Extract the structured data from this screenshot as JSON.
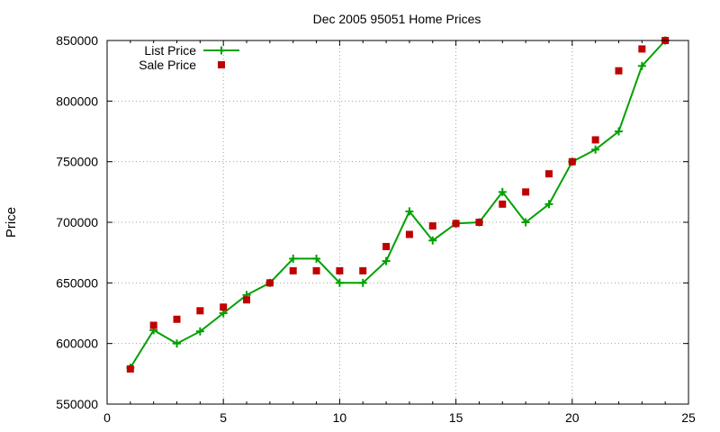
{
  "chart_data": {
    "type": "line",
    "title": "Dec 2005 95051 Home Prices",
    "xlabel": "",
    "ylabel": "Price",
    "xlim": [
      0,
      25
    ],
    "ylim": [
      550000,
      850000
    ],
    "xticks": [
      0,
      5,
      10,
      15,
      20,
      25
    ],
    "yticks": [
      550000,
      600000,
      650000,
      700000,
      750000,
      800000,
      850000
    ],
    "grid": true,
    "legend_position": "top-left",
    "series": [
      {
        "name": "List Price",
        "style": "line-points",
        "marker": "plus",
        "color": "#00a000",
        "x": [
          1,
          2,
          3,
          4,
          5,
          6,
          7,
          8,
          9,
          10,
          11,
          12,
          13,
          14,
          15,
          16,
          17,
          18,
          19,
          20,
          21,
          22,
          23,
          24
        ],
        "y": [
          580000,
          611000,
          600000,
          610000,
          625000,
          640000,
          650000,
          670000,
          670000,
          650000,
          650000,
          668000,
          709000,
          685000,
          699000,
          700000,
          725000,
          700000,
          715000,
          750000,
          760000,
          775000,
          829000,
          850000
        ]
      },
      {
        "name": "Sale Price",
        "style": "points",
        "marker": "square",
        "color": "#c00000",
        "x": [
          1,
          2,
          3,
          4,
          5,
          6,
          7,
          8,
          9,
          10,
          11,
          12,
          13,
          14,
          15,
          16,
          17,
          18,
          19,
          20,
          21,
          22,
          23,
          24
        ],
        "y": [
          579000,
          615000,
          620000,
          627000,
          630000,
          636000,
          650000,
          660000,
          660000,
          660000,
          660000,
          680000,
          690000,
          697000,
          699000,
          700000,
          715000,
          725000,
          740000,
          750000,
          768000,
          825000,
          843000,
          850000
        ]
      }
    ]
  }
}
